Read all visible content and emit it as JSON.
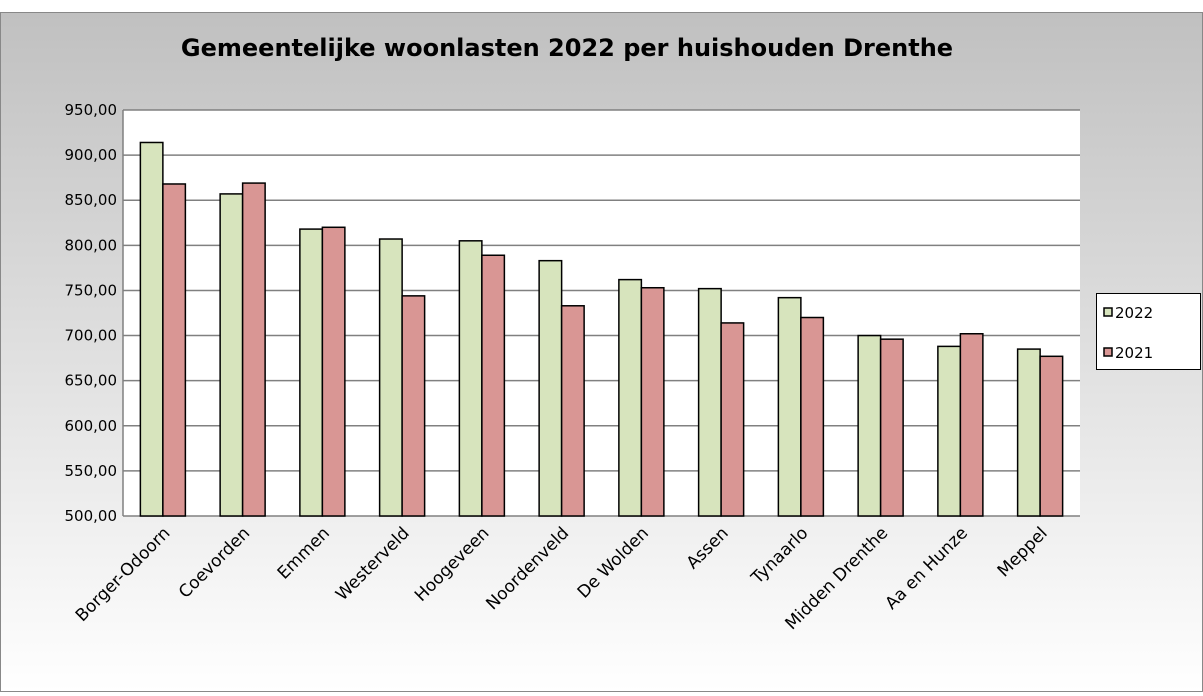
{
  "chart_data": {
    "type": "bar",
    "title": "Gemeentelijke woonlasten 2022 per huishouden Drenthe",
    "categories": [
      "Borger-Odoorn",
      "Coevorden",
      "Emmen",
      "Westerveld",
      "Hoogeveen",
      "Noordenveld",
      "De Wolden",
      "Assen",
      "Tynaarlo",
      "Midden Drenthe",
      "Aa en Hunze",
      "Meppel"
    ],
    "series": [
      {
        "name": "2022",
        "color": "#d7e4bd",
        "values": [
          914,
          857,
          818,
          807,
          805,
          783,
          762,
          752,
          742,
          700,
          688,
          685
        ]
      },
      {
        "name": "2021",
        "color": "#d99694",
        "values": [
          868,
          869,
          820,
          744,
          789,
          733,
          753,
          714,
          720,
          696,
          702,
          677
        ]
      }
    ],
    "ylim": [
      500,
      950
    ],
    "yticks": [
      {
        "value": 500,
        "label": "500,00"
      },
      {
        "value": 550,
        "label": "550,00"
      },
      {
        "value": 600,
        "label": "600,00"
      },
      {
        "value": 650,
        "label": "650,00"
      },
      {
        "value": 700,
        "label": "700,00"
      },
      {
        "value": 750,
        "label": "750,00"
      },
      {
        "value": 800,
        "label": "800,00"
      },
      {
        "value": 850,
        "label": "850,00"
      },
      {
        "value": 900,
        "label": "900,00"
      },
      {
        "value": 950,
        "label": "950,00"
      }
    ],
    "grid": true,
    "legend": "right"
  }
}
